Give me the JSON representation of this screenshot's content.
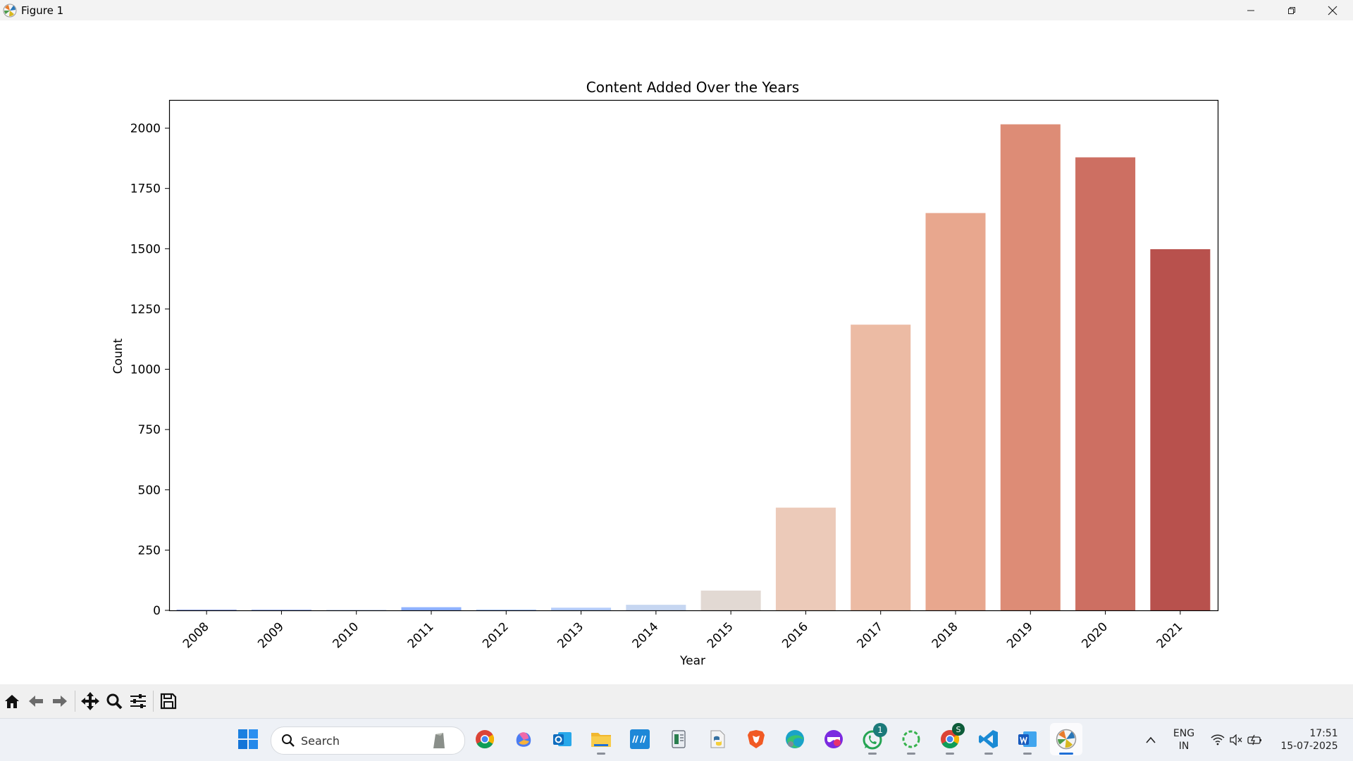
{
  "window": {
    "title": "Figure 1"
  },
  "chart_data": {
    "type": "bar",
    "title": "Content Added Over the Years",
    "xlabel": "Year",
    "ylabel": "Count",
    "categories": [
      "2008",
      "2009",
      "2010",
      "2011",
      "2012",
      "2013",
      "2014",
      "2015",
      "2016",
      "2017",
      "2018",
      "2019",
      "2020",
      "2021"
    ],
    "values": [
      2,
      2,
      1,
      13,
      3,
      11,
      23,
      82,
      426,
      1185,
      1648,
      2016,
      1879,
      1498
    ],
    "colors": [
      "#5470de",
      "#6788ee",
      "#7b9ff9",
      "#8fb1fe",
      "#a3c2fe",
      "#b5cdfa",
      "#c6d6f1",
      "#e2d9d3",
      "#eccab9",
      "#ecbba4",
      "#e8a78e",
      "#dd8c76",
      "#cd6f62",
      "#b8514d"
    ],
    "ylim": [
      0,
      2117
    ],
    "yticks": [
      0,
      250,
      500,
      750,
      1000,
      1250,
      1500,
      1750,
      2000
    ],
    "grid": false,
    "legend": "none"
  },
  "toolbar": {
    "buttons": [
      "home-icon",
      "back-arrow-icon",
      "forward-arrow-icon",
      "pan-icon",
      "zoom-icon",
      "configure-subplots-icon",
      "save-icon"
    ]
  },
  "taskbar": {
    "search_placeholder": "Search",
    "whatsapp_badge": "1",
    "chrome_badge": "S",
    "lang_line1": "ENG",
    "lang_line2": "IN",
    "time": "17:51",
    "date": "15-07-2025"
  }
}
